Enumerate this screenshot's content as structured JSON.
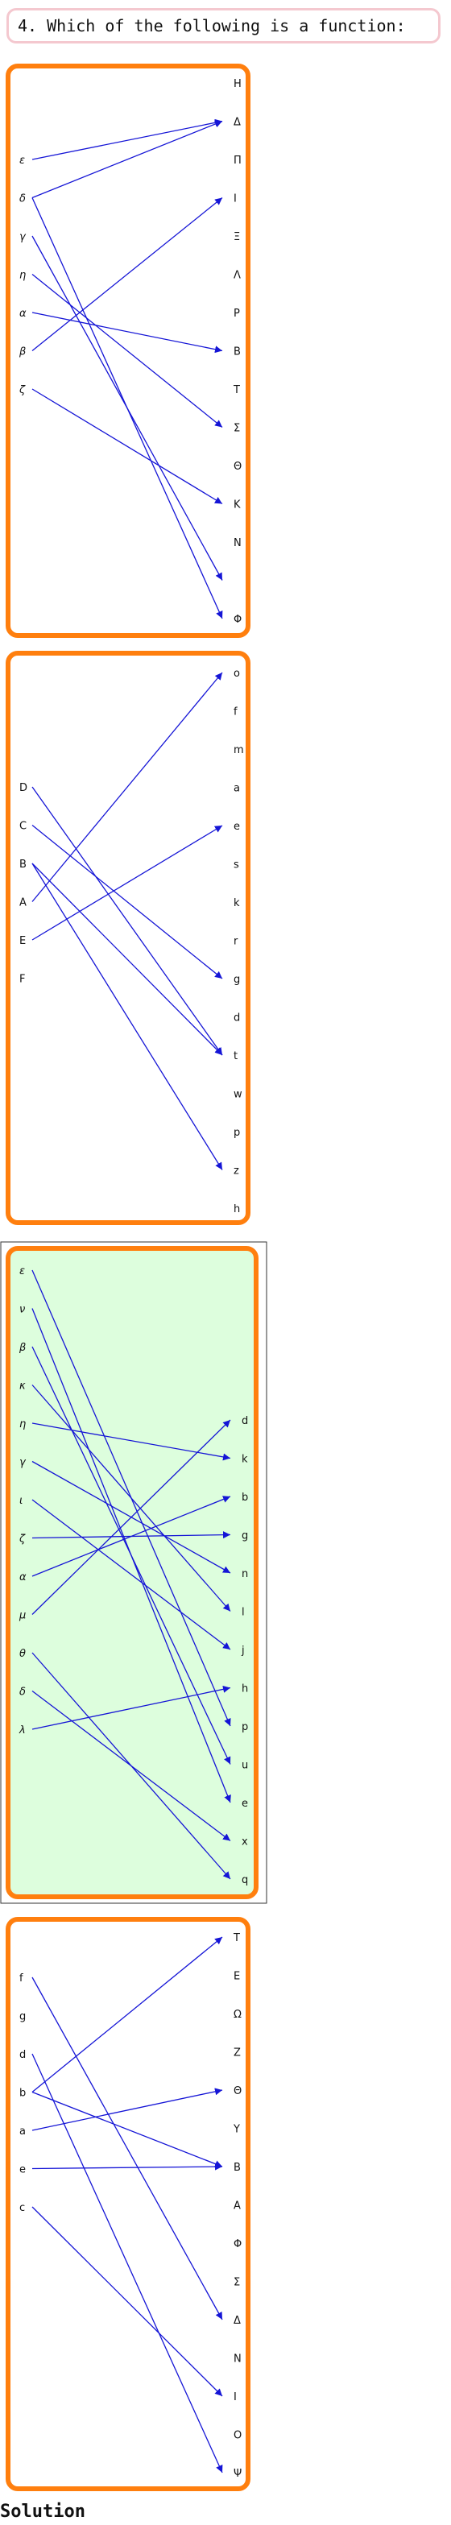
{
  "question": {
    "text": "4. Which of the following is a function:"
  },
  "panels": [
    {
      "left_labels": [
        "ε",
        "δ",
        "γ",
        "η",
        "α",
        "β",
        "ζ"
      ],
      "left_italic": true,
      "right_labels": [
        "H",
        "Δ",
        "Π",
        "I",
        "Ξ",
        "Λ",
        "P",
        "B",
        "T",
        "Σ",
        "Θ",
        "K",
        "N",
        "",
        "Φ"
      ],
      "mappings": [
        [
          0,
          1
        ],
        [
          1,
          1
        ],
        [
          1,
          14
        ],
        [
          2,
          13
        ],
        [
          3,
          9
        ],
        [
          4,
          7
        ],
        [
          5,
          3
        ],
        [
          6,
          11
        ]
      ],
      "selected": false
    },
    {
      "left_labels": [
        "D",
        "C",
        "B",
        "A",
        "E",
        "F"
      ],
      "left_italic": false,
      "right_labels": [
        "o",
        "f",
        "m",
        "a",
        "e",
        "s",
        "k",
        "r",
        "g",
        "d",
        "t",
        "w",
        "p",
        "z",
        "h"
      ],
      "mappings": [
        [
          0,
          10
        ],
        [
          1,
          8
        ],
        [
          2,
          10
        ],
        [
          2,
          13
        ],
        [
          3,
          0
        ],
        [
          4,
          4
        ]
      ],
      "selected": false
    },
    {
      "left_labels": [
        "ε",
        "ν",
        "β",
        "κ",
        "η",
        "γ",
        "ι",
        "ζ",
        "α",
        "μ",
        "θ",
        "δ",
        "λ"
      ],
      "left_italic": true,
      "right_labels": [
        "d",
        "k",
        "b",
        "g",
        "n",
        "l",
        "j",
        "h",
        "p",
        "u",
        "e",
        "x",
        "q"
      ],
      "mappings": [
        [
          0,
          8
        ],
        [
          1,
          10
        ],
        [
          2,
          9
        ],
        [
          3,
          5
        ],
        [
          4,
          1
        ],
        [
          5,
          4
        ],
        [
          6,
          6
        ],
        [
          7,
          3
        ],
        [
          8,
          2
        ],
        [
          9,
          0
        ],
        [
          10,
          12
        ],
        [
          11,
          11
        ],
        [
          12,
          7
        ]
      ],
      "selected": true
    },
    {
      "left_labels": [
        "f",
        "g",
        "d",
        "b",
        "a",
        "e",
        "c"
      ],
      "left_italic": false,
      "right_labels": [
        "T",
        "E",
        "Ω",
        "Z",
        "Θ",
        "Y",
        "B",
        "A",
        "Φ",
        "Σ",
        "Δ",
        "N",
        "I",
        "O",
        "Ψ"
      ],
      "mappings": [
        [
          0,
          10
        ],
        [
          2,
          14
        ],
        [
          3,
          0
        ],
        [
          3,
          6
        ],
        [
          4,
          4
        ],
        [
          5,
          6
        ],
        [
          6,
          12
        ]
      ],
      "selected": false
    }
  ],
  "colors": {
    "arrow": "#1515d6",
    "panel_border": "#ff7f0e",
    "selected_fill": "#ddfedd",
    "selected_frame": "#333333"
  },
  "solution": {
    "label": "Solution"
  }
}
